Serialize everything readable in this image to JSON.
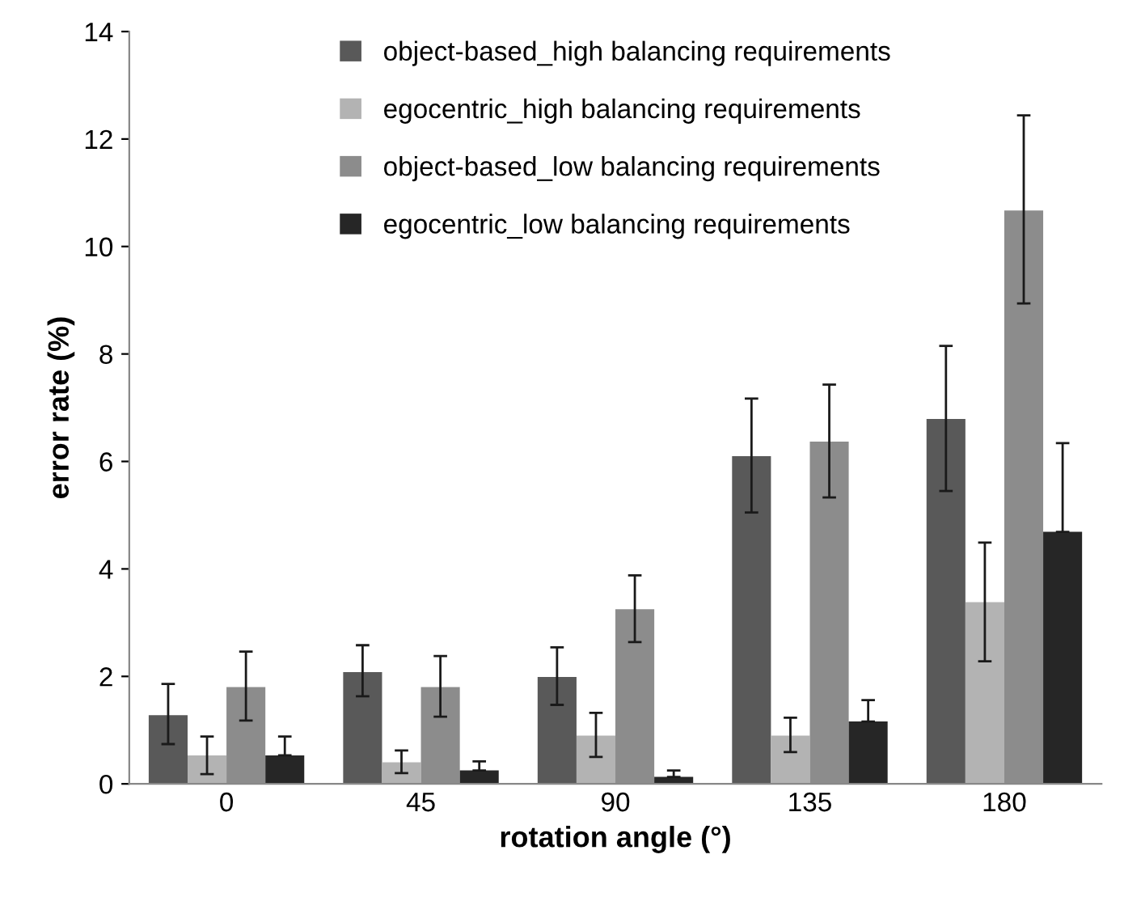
{
  "chart_data": {
    "type": "bar",
    "xlabel": "rotation angle (°)",
    "ylabel": "error rate (%)",
    "categories": [
      "0",
      "45",
      "90",
      "135",
      "180"
    ],
    "ylim": [
      0,
      14
    ],
    "yticks": [
      0,
      2,
      4,
      6,
      8,
      10,
      12,
      14
    ],
    "grid": false,
    "legend": "top",
    "series": [
      {
        "name": "object-based_high balancing requirements",
        "color": "#595959",
        "values": [
          1.28,
          2.08,
          1.99,
          6.1,
          6.79
        ],
        "errors": [
          [
            0.74,
            1.86
          ],
          [
            1.63,
            2.58
          ],
          [
            1.47,
            2.54
          ],
          [
            5.05,
            7.17
          ],
          [
            5.45,
            8.15
          ]
        ]
      },
      {
        "name": "egocentric_high balancing requirements",
        "color": "#b3b3b3",
        "values": [
          0.53,
          0.4,
          0.9,
          0.9,
          3.38
        ],
        "errors": [
          [
            0.18,
            0.88
          ],
          [
            0.2,
            0.62
          ],
          [
            0.5,
            1.32
          ],
          [
            0.59,
            1.23
          ],
          [
            2.28,
            4.49
          ]
        ]
      },
      {
        "name": "object-based_low balancing requirements",
        "color": "#8c8c8c",
        "values": [
          1.8,
          1.8,
          3.25,
          6.37,
          10.67
        ],
        "errors": [
          [
            1.18,
            2.46
          ],
          [
            1.25,
            2.38
          ],
          [
            2.64,
            3.88
          ],
          [
            5.33,
            7.43
          ],
          [
            8.94,
            12.44
          ]
        ]
      },
      {
        "name": "egocentric_low balancing requirements",
        "color": "#262626",
        "values": [
          0.53,
          0.25,
          0.13,
          1.16,
          4.69
        ],
        "errors": [
          [
            0.53,
            0.88
          ],
          [
            0.25,
            0.42
          ],
          [
            0.13,
            0.25
          ],
          [
            1.16,
            1.56
          ],
          [
            4.69,
            6.34
          ]
        ]
      }
    ]
  }
}
